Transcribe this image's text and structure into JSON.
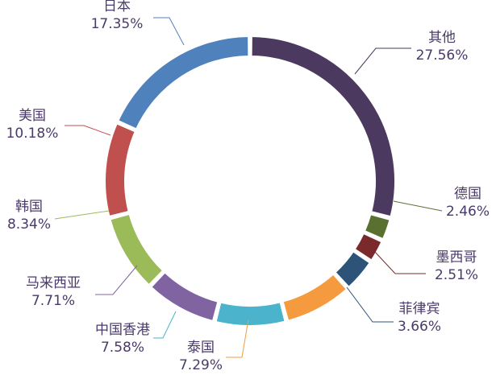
{
  "chart_data": {
    "type": "pie",
    "donut": true,
    "slices": [
      {
        "label": "其他",
        "percent": 27.56,
        "percent_text": "27.56%",
        "color": "#4b3960"
      },
      {
        "label": "德国",
        "percent": 2.46,
        "percent_text": "2.46%",
        "color": "#5a7030"
      },
      {
        "label": "墨西哥",
        "percent": 2.51,
        "percent_text": "2.51%",
        "color": "#7a2a2a"
      },
      {
        "label": "菲律宾",
        "percent": 3.66,
        "percent_text": "3.66%",
        "color": "#2d5478"
      },
      {
        "label": "泰国",
        "percent": 7.29,
        "percent_text": "7.29%",
        "color": "#f59a3e"
      },
      {
        "label": "中国香港",
        "percent": 7.58,
        "percent_text": "7.58%",
        "color": "#4bb3cb"
      },
      {
        "label": "马来西亚",
        "percent": 7.71,
        "percent_text": "7.71%",
        "color": "#8064a2"
      },
      {
        "label": "韩国",
        "percent": 8.34,
        "percent_text": "8.34%",
        "color": "#9bbb59"
      },
      {
        "label": "美国",
        "percent": 10.18,
        "percent_text": "10.18%",
        "color": "#c0504d"
      },
      {
        "label": "日本",
        "percent": 17.35,
        "percent_text": "17.35%",
        "color": "#4f81bd"
      }
    ]
  }
}
